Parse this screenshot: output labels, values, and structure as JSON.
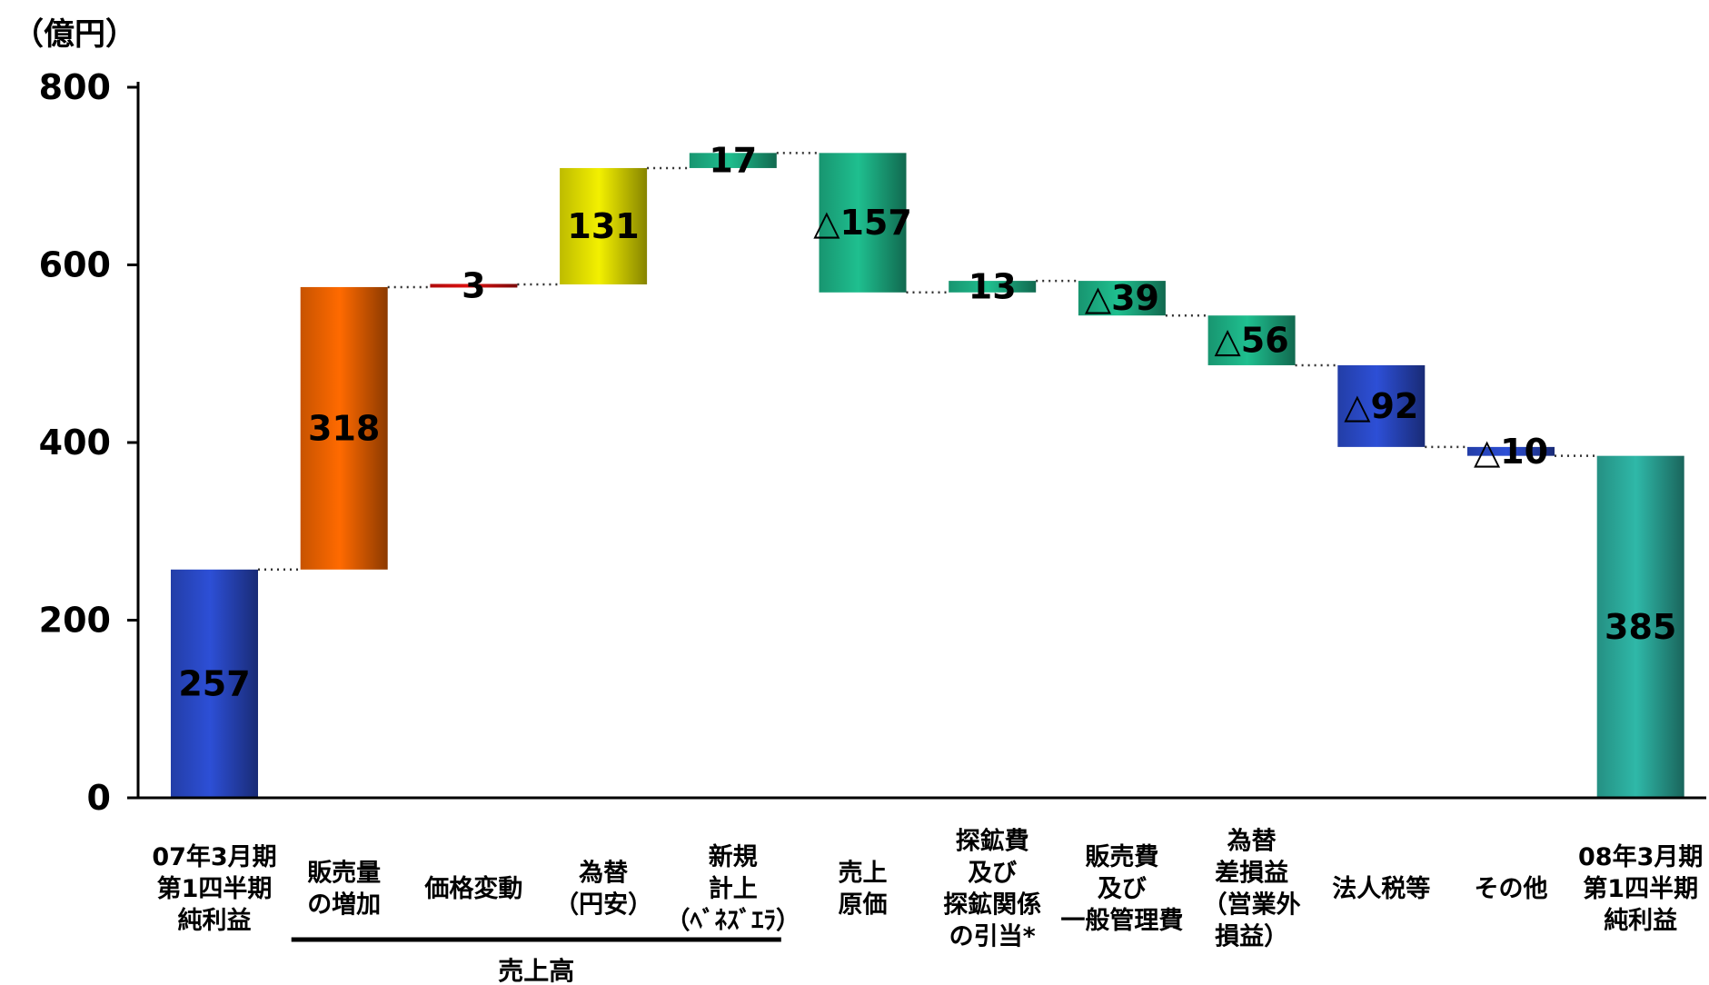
{
  "chart_data": {
    "type": "waterfall",
    "unit_label": "（億円）",
    "ylim": [
      0,
      800
    ],
    "yticks": [
      0,
      200,
      400,
      600,
      800
    ],
    "group_label": "売上高",
    "group_span": [
      1,
      4
    ],
    "bars": [
      {
        "label_lines": [
          "07年3月期",
          "第1四半期",
          "純利益"
        ],
        "start": 0,
        "end": 257,
        "value_label": "257",
        "color": "#2d4fd6",
        "kind": "total"
      },
      {
        "label_lines": [
          "販売量",
          "の増加"
        ],
        "start": 257,
        "end": 575,
        "value_label": "318",
        "color": "#ff6a00",
        "kind": "delta"
      },
      {
        "label_lines": [
          "価格変動"
        ],
        "start": 575,
        "end": 578,
        "value_label": "3",
        "color": "#e01010",
        "kind": "delta"
      },
      {
        "label_lines": [
          "為替",
          "（円安）"
        ],
        "start": 578,
        "end": 709,
        "value_label": "131",
        "color": "#f3f000",
        "kind": "delta"
      },
      {
        "label_lines": [
          "新規",
          "計上",
          "（ﾍﾞﾈｽﾞｴﾗ）"
        ],
        "start": 709,
        "end": 726,
        "value_label": "17",
        "color": "#1fbf8f",
        "kind": "delta"
      },
      {
        "label_lines": [
          "売上",
          "原価"
        ],
        "start": 726,
        "end": 569,
        "value_label": "△157",
        "color": "#1fbf8f",
        "kind": "delta"
      },
      {
        "label_lines": [
          "探鉱費",
          "及び",
          "探鉱関係",
          "の引当*"
        ],
        "start": 569,
        "end": 582,
        "value_label": "13",
        "color": "#1fbf8f",
        "kind": "delta"
      },
      {
        "label_lines": [
          "販売費",
          "及び",
          "一般管理費"
        ],
        "start": 582,
        "end": 543,
        "value_label": "△39",
        "color": "#1fbf8f",
        "kind": "delta"
      },
      {
        "label_lines": [
          "為替",
          "差損益",
          "（営業外",
          "損益）"
        ],
        "start": 543,
        "end": 487,
        "value_label": "△56",
        "color": "#1fbf8f",
        "kind": "delta"
      },
      {
        "label_lines": [
          "法人税等"
        ],
        "start": 487,
        "end": 395,
        "value_label": "△92",
        "color": "#2d4fd6",
        "kind": "delta"
      },
      {
        "label_lines": [
          "その他"
        ],
        "start": 395,
        "end": 385,
        "value_label": "△10",
        "color": "#2d4fd6",
        "kind": "delta"
      },
      {
        "label_lines": [
          "08年3月期",
          "第1四半期",
          "純利益"
        ],
        "start": 0,
        "end": 385,
        "value_label": "385",
        "color": "#2fb8a8",
        "kind": "total"
      }
    ]
  }
}
